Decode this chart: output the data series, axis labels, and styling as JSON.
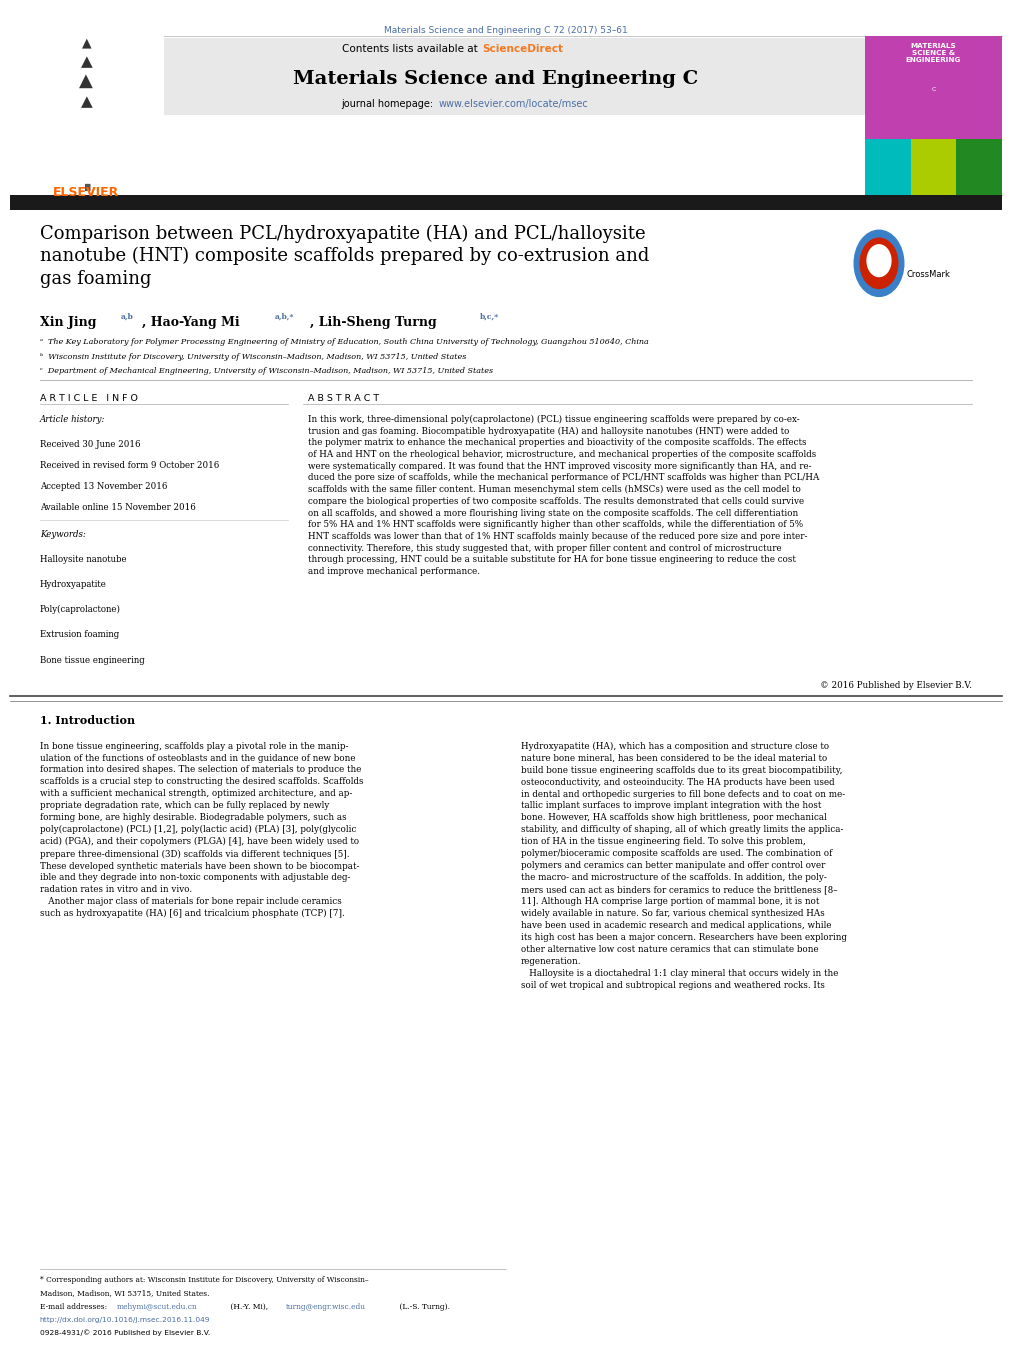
{
  "fig_width": 9.92,
  "fig_height": 13.23,
  "bg_color": "#ffffff",
  "journal_ref": "Materials Science and Engineering C 72 (2017) 53–61",
  "journal_ref_color": "#4a6fa5",
  "journal_name": "Materials Science and Engineering C",
  "sciencedirect_color": "#f47920",
  "journal_homepage_url": "www.elsevier.com/locate/msec",
  "journal_homepage_url_color": "#4a6fa5",
  "title": "Comparison between PCL/hydroxyapatite (HA) and PCL/halloysite\nnanotube (HNT) composite scaffolds prepared by co-extrusion and\ngas foaming",
  "affil_a": "ᵃ  The Key Laboratory for Polymer Processing Engineering of Ministry of Education, South China University of Technology, Guangzhou 510640, China",
  "affil_b": "ᵇ  Wisconsin Institute for Discovery, University of Wisconsin–Madison, Madison, WI 53715, United States",
  "affil_c": "ᶜ  Department of Mechanical Engineering, University of Wisconsin–Madison, Madison, WI 53715, United States",
  "received": "Received 30 June 2016",
  "received_revised": "Received in revised form 9 October 2016",
  "accepted": "Accepted 13 November 2016",
  "available": "Available online 15 November 2016",
  "keywords": [
    "Halloysite nanotube",
    "Hydroxyapatite",
    "Poly(caprolactone)",
    "Extrusion foaming",
    "Bone tissue engineering"
  ],
  "abstract_text": "In this work, three-dimensional poly(caprolactone) (PCL) tissue engineering scaffolds were prepared by co-ex-\ntrusion and gas foaming. Biocompatible hydroxyapatite (HA) and halloysite nanotubes (HNT) were added to\nthe polymer matrix to enhance the mechanical properties and bioactivity of the composite scaffolds. The effects\nof HA and HNT on the rheological behavior, microstructure, and mechanical properties of the composite scaffolds\nwere systematically compared. It was found that the HNT improved viscosity more significantly than HA, and re-\nduced the pore size of scaffolds, while the mechanical performance of PCL/HNT scaffolds was higher than PCL/HA\nscaffolds with the same filler content. Human mesenchymal stem cells (hMSCs) were used as the cell model to\ncompare the biological properties of two composite scaffolds. The results demonstrated that cells could survive\non all scaffolds, and showed a more flourishing living state on the composite scaffolds. The cell differentiation\nfor 5% HA and 1% HNT scaffolds were significantly higher than other scaffolds, while the differentiation of 5%\nHNT scaffolds was lower than that of 1% HNT scaffolds mainly because of the reduced pore size and pore inter-\nconnectivity. Therefore, this study suggested that, with proper filler content and control of microstructure\nthrough processing, HNT could be a suitable substitute for HA for bone tissue engineering to reduce the cost\nand improve mechanical performance.",
  "copyright": "© 2016 Published by Elsevier B.V.",
  "intro_col1_text": "In bone tissue engineering, scaffolds play a pivotal role in the manip-\nulation of the functions of osteoblasts and in the guidance of new bone\nformation into desired shapes. The selection of materials to produce the\nscaffolds is a crucial step to constructing the desired scaffolds. Scaffolds\nwith a sufficient mechanical strength, optimized architecture, and ap-\npropriate degradation rate, which can be fully replaced by newly\nforming bone, are highly desirable. Biodegradable polymers, such as\npoly(caprolactone) (PCL) [1,2], poly(lactic acid) (PLA) [3], poly(glycolic\nacid) (PGA), and their copolymers (PLGA) [4], have been widely used to\nprepare three-dimensional (3D) scaffolds via different techniques [5].\nThese developed synthetic materials have been shown to be biocompat-\nible and they degrade into non-toxic components with adjustable deg-\nradation rates in vitro and in vivo.\n   Another major class of materials for bone repair include ceramics\nsuch as hydroxyapatite (HA) [6] and tricalcium phosphate (TCP) [7].",
  "intro_col2_text": "Hydroxyapatite (HA), which has a composition and structure close to\nnature bone mineral, has been considered to be the ideal material to\nbuild bone tissue engineering scaffolds due to its great biocompatibility,\nosteoconductivity, and osteoinducity. The HA products have been used\nin dental and orthopedic surgeries to fill bone defects and to coat on me-\ntallic implant surfaces to improve implant integration with the host\nbone. However, HA scaffolds show high brittleness, poor mechanical\nstability, and difficulty of shaping, all of which greatly limits the applica-\ntion of HA in the tissue engineering field. To solve this problem,\npolymer/bioceramic composite scaffolds are used. The combination of\npolymers and ceramics can better manipulate and offer control over\nthe macro- and microstructure of the scaffolds. In addition, the poly-\nmers used can act as binders for ceramics to reduce the brittleness [8–\n11]. Although HA comprise large portion of mammal bone, it is not\nwidely available in nature. So far, various chemical synthesized HAs\nhave been used in academic research and medical applications, while\nits high cost has been a major concern. Researchers have been exploring\nother alternative low cost nature ceramics that can stimulate bone\nregeneration.\n   Halloysite is a dioctahedral 1:1 clay mineral that occurs widely in the\nsoil of wet tropical and subtropical regions and weathered rocks. Its",
  "doi_line": "http://dx.doi.org/10.1016/j.msec.2016.11.049",
  "doi_line_color": "#4a6fa5",
  "issn_line": "0928-4931/© 2016 Published by Elsevier B.V.",
  "header_bg": "#e8e8e8",
  "black_bar_color": "#1a1a1a",
  "elsevier_orange": "#ff6600",
  "journal_cover_bg": "#c040b0",
  "separator_line_color": "#999999"
}
